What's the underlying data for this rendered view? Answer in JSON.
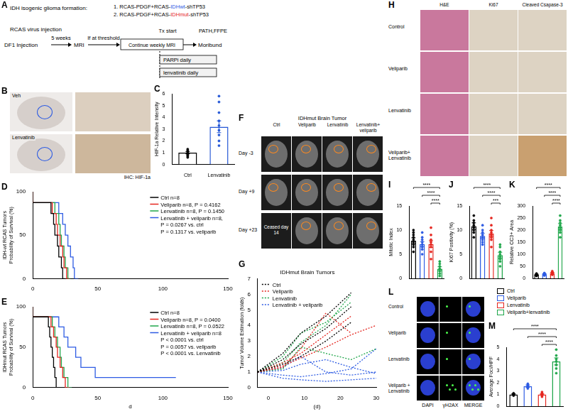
{
  "diagram": {
    "panel": "A",
    "heading": "IDH isogenic glioma formation:",
    "constructs": [
      {
        "number": "1.",
        "prefix": "RCAS-PDGF+RCAS-",
        "highlight": "IDHwt",
        "suffix": "-shTP53",
        "color": "#2d5be3"
      },
      {
        "number": "2.",
        "prefix": "RCAS-PDGF+RCAS-",
        "highlight": "IDHmut",
        "suffix": "-shTP53",
        "color": "#e5261f"
      }
    ],
    "steps": {
      "virus": "RCAS virus injection",
      "injection": "DF1 Injection",
      "interval": "5 weeks",
      "mri": "MRI",
      "threshold": "If at threshold",
      "weekly": "Continue weekly MRI",
      "tx": "Tx start",
      "parpi": "PARPi daily",
      "lenvatinib": "lenvatinib daily",
      "moribund": "Moribund",
      "path": "PATH,FFPE"
    }
  },
  "ihc_images": {
    "panel": "B",
    "rows": [
      "Veh",
      "Lenvatinib"
    ],
    "stain": "IHC: HIF-1a"
  },
  "mri_images": {
    "panel": "F",
    "title": "IDHmut Brain Tumor",
    "columns": [
      "Ctrl",
      "Veliparib",
      "Lenvatinib",
      "Lenvatinib+ veliparib"
    ],
    "rows": [
      "Day -3",
      "Day +9",
      "Day +23"
    ],
    "note": "Ceased day 14"
  },
  "histology_images": {
    "panel": "H",
    "columns": [
      "H&E",
      "Ki67",
      "Cleaved Csapase-3"
    ],
    "rows": [
      "Control",
      "Veliparib",
      "Lenvatinib",
      "Veliparib+ Lenvatinib"
    ]
  },
  "if_images": {
    "panel": "L",
    "columns": [
      "DAPI",
      "γH2AX",
      "MERGE"
    ],
    "rows": [
      "Control",
      "Veliparib",
      "Lenvatinib",
      "Veliparib + Lenvatinib"
    ]
  },
  "legend_key": {
    "items": [
      {
        "name": "Ctrl",
        "color": "#000000"
      },
      {
        "name": "Veliparib",
        "color": "#2d5be3"
      },
      {
        "name": "Lenvatinib",
        "color": "#e5261f"
      },
      {
        "name": "Veliparib+lenvatinib",
        "color": "#1fa64a"
      }
    ]
  },
  "chart_data": [
    {
      "panel": "C",
      "type": "bar",
      "categories": [
        "Ctrl",
        "Lenvatinib"
      ],
      "values": [
        1.0,
        3.2
      ],
      "errors": [
        0.1,
        0.5
      ],
      "points": [
        [
          0.6,
          0.7,
          0.8,
          0.9,
          1.0,
          1.1,
          1.2,
          1.3
        ],
        [
          1.6,
          2.0,
          2.5,
          2.9,
          3.3,
          3.7,
          4.4,
          5.3,
          5.8
        ]
      ],
      "colors": [
        "#000000",
        "#2356d6"
      ],
      "ylabel": "HIF-1a Relative Intensity",
      "ylim": [
        0,
        6
      ],
      "yticks": [
        0,
        1,
        2,
        3,
        4,
        5,
        6
      ],
      "grid": false
    },
    {
      "panel": "D",
      "type": "line",
      "line_style": "step",
      "ylabel": [
        "IDH-wt RCAS Tumors",
        "Probability of Survival (%)"
      ],
      "xlim": [
        0,
        150
      ],
      "xticks": [
        0,
        50,
        100,
        150
      ],
      "ylim": [
        0,
        100
      ],
      "yticks": [
        0,
        50,
        100
      ],
      "grid": false,
      "legend": "upper right",
      "series": [
        {
          "name": "Ctrl n=8",
          "color": "#000000",
          "x": [
            0,
            14,
            16,
            17,
            19,
            20,
            22,
            23,
            25
          ],
          "values": [
            100,
            87.5,
            75,
            62.5,
            50,
            37.5,
            25,
            12.5,
            0
          ]
        },
        {
          "name": "Veliparib n=8, P = 0.4162",
          "color": "#e5261f",
          "x": [
            0,
            15,
            18,
            19,
            21,
            23,
            24,
            26,
            28
          ],
          "values": [
            100,
            87.5,
            75,
            62.5,
            50,
            37.5,
            25,
            12.5,
            0
          ]
        },
        {
          "name": "Lenvatinib n=8, P = 0.1450",
          "color": "#1fa64a",
          "x": [
            0,
            17,
            20,
            21,
            22,
            24,
            25,
            27,
            29
          ],
          "values": [
            100,
            87.5,
            75,
            62.5,
            50,
            37.5,
            25,
            12.5,
            0
          ]
        },
        {
          "name": "Lenvatinib + veliparib n=8,",
          "color": "#2d5be3",
          "notes": [
            "P = 0.0267 vs. ctrl",
            "P = 0.1317 vs. veliparib"
          ],
          "x": [
            0,
            20,
            23,
            25,
            27,
            29,
            31,
            32,
            35
          ],
          "values": [
            100,
            87.5,
            75,
            62.5,
            50,
            37.5,
            25,
            12.5,
            0
          ]
        }
      ]
    },
    {
      "panel": "E",
      "type": "line",
      "line_style": "step",
      "xlabel": "d",
      "ylabel": [
        "IDHmut RCAS Tumors",
        "Probability of Survival (%)"
      ],
      "xlim": [
        0,
        150
      ],
      "xticks": [
        0,
        50,
        100,
        150
      ],
      "ylim": [
        0,
        100
      ],
      "yticks": [
        0,
        50,
        100
      ],
      "grid": false,
      "legend": "upper right",
      "series": [
        {
          "name": "Ctrl n=8",
          "color": "#000000",
          "x": [
            0,
            12,
            13,
            14,
            15,
            16,
            17,
            18,
            19
          ],
          "values": [
            100,
            87.5,
            75,
            62.5,
            50,
            37.5,
            25,
            12.5,
            0
          ]
        },
        {
          "name": "Veliparib n=8, P = 0.0400",
          "color": "#e5261f",
          "x": [
            0,
            14,
            16,
            18,
            19,
            21,
            23,
            25,
            28
          ],
          "values": [
            100,
            87.5,
            75,
            62.5,
            50,
            37.5,
            25,
            12.5,
            0
          ]
        },
        {
          "name": "Lenvatinib n=8, P = 0.0522",
          "color": "#1fa64a",
          "x": [
            0,
            15,
            17,
            19,
            21,
            22,
            24,
            27,
            30
          ],
          "values": [
            100,
            87.5,
            75,
            62.5,
            50,
            37.5,
            25,
            12.5,
            0
          ]
        },
        {
          "name": "Lenvatinib + veliparib n=8",
          "color": "#2d5be3",
          "notes": [
            "P < 0.0001 vs. ctrl",
            "P = 0.0057 vs. veliparib",
            "P < 0.0001 vs. Lenvatinib"
          ],
          "x": [
            0,
            20,
            24,
            27,
            33,
            37,
            48,
            105,
            110
          ],
          "values": [
            100,
            87.5,
            75,
            62.5,
            50,
            37.5,
            25,
            12.5,
            12.5
          ]
        }
      ]
    },
    {
      "panel": "G",
      "type": "line",
      "title": "IDHmut Brain Tumors",
      "xlabel": "(d)",
      "ylabel": "Tumor Volume Estimation (folds)",
      "x": [
        -3,
        4,
        9,
        16,
        23,
        30
      ],
      "xlim": [
        -3,
        30
      ],
      "xticks": [
        0,
        10,
        20,
        30
      ],
      "ylim": [
        0,
        7
      ],
      "yticks": [
        0,
        1,
        2,
        3,
        4,
        5,
        6,
        7
      ],
      "grid": false,
      "legend": "upper left",
      "series": [
        {
          "name": "Ctrl",
          "color": "#000000",
          "line_style": "dotted",
          "runs": [
            [
              1,
              1.8,
              2.8,
              3.8,
              5.2,
              null
            ],
            [
              1,
              2.2,
              3.5,
              4.6,
              6.1,
              null
            ],
            [
              1,
              1.5,
              2.0,
              3.0,
              4.2,
              null
            ]
          ]
        },
        {
          "name": "Veliparib",
          "color": "#e5261f",
          "line_style": "dotted",
          "runs": [
            [
              1,
              1.6,
              2.2,
              3.4,
              4.6,
              null
            ],
            [
              1,
              1.3,
              2.5,
              4.8,
              3.5,
              null
            ],
            [
              1,
              1.4,
              1.9,
              2.6,
              3.4,
              4.0
            ]
          ]
        },
        {
          "name": "Lenvatinib",
          "color": "#1fa64a",
          "line_style": "dotted",
          "runs": [
            [
              1,
              2.0,
              3.5,
              4.2,
              5.5,
              null
            ],
            [
              1,
              1.6,
              2.9,
              4.0,
              6.0,
              null
            ],
            [
              1,
              1.2,
              2.6,
              2.2,
              1.8,
              2.5
            ]
          ]
        },
        {
          "name": "Lenvatinib + veliparib",
          "color": "#2d5be3",
          "line_style": "dotted",
          "runs": [
            [
              1,
              0.8,
              0.7,
              0.9,
              1.2,
              2.5
            ],
            [
              1,
              1.1,
              1.5,
              1.8,
              1.3,
              0.9
            ],
            [
              1,
              0.6,
              0.5,
              0.4,
              0.5,
              0.6
            ],
            [
              1,
              1.3,
              2.0,
              1.0,
              0.8,
              1.0
            ]
          ]
        }
      ]
    },
    {
      "panel": "I",
      "type": "bar",
      "tick_labels": "y",
      "categories": [
        "Ctrl",
        "Veliparib",
        "Lenvatinib",
        "Veliparib+lenvatinib"
      ],
      "values": [
        7.8,
        7.1,
        7.1,
        2.0
      ],
      "errors": [
        0.6,
        0.5,
        0.7,
        0.4
      ],
      "points": [
        [
          5.5,
          6.5,
          7.0,
          7.5,
          8.0,
          8.5,
          9.0,
          9.5,
          10.0
        ],
        [
          5.0,
          6.0,
          6.5,
          7.0,
          7.5,
          8.0,
          8.5,
          9.5
        ],
        [
          4.0,
          5.5,
          6.5,
          7.0,
          7.5,
          8.0,
          9.0,
          10.5
        ],
        [
          0.5,
          1.0,
          1.5,
          2.0,
          2.5,
          3.0,
          3.5
        ]
      ],
      "colors": [
        "#000000",
        "#2d5be3",
        "#e5261f",
        "#1fa64a"
      ],
      "ylabel": "Mitotic Index",
      "ylim": [
        0,
        15
      ],
      "yticks": [
        0,
        5,
        10,
        15
      ],
      "grid": false,
      "brackets": [
        {
          "between": [
            "Ctrl",
            "Veliparib+lenvatinib"
          ],
          "label": "****"
        },
        {
          "between": [
            "Veliparib",
            "Veliparib+lenvatinib"
          ],
          "label": "****"
        },
        {
          "between": [
            "Lenvatinib",
            "Veliparib+lenvatinib"
          ],
          "label": "****"
        }
      ]
    },
    {
      "panel": "J",
      "type": "bar",
      "tick_labels": "y",
      "categories": [
        "Ctrl",
        "Veliparib",
        "Lenvatinib",
        "Veliparib+lenvatinib"
      ],
      "values": [
        10.8,
        8.8,
        9.3,
        4.8
      ],
      "errors": [
        0.7,
        0.5,
        0.6,
        0.6
      ],
      "points": [
        [
          8.5,
          9.5,
          10.0,
          10.5,
          11.0,
          11.5,
          12.0,
          13.0
        ],
        [
          7.0,
          7.5,
          8.0,
          8.5,
          9.0,
          9.5,
          10.0,
          11.0
        ],
        [
          6.5,
          8.0,
          8.5,
          9.0,
          9.5,
          10.0,
          11.0,
          12.5
        ],
        [
          2.5,
          3.5,
          4.0,
          4.5,
          5.0,
          5.5,
          6.5,
          7.0
        ]
      ],
      "colors": [
        "#000000",
        "#2d5be3",
        "#e5261f",
        "#1fa64a"
      ],
      "ylabel": "Ki67 Positivity (%)",
      "ylim": [
        0,
        15
      ],
      "yticks": [
        0,
        5,
        10,
        15
      ],
      "grid": false,
      "brackets": [
        {
          "between": [
            "Ctrl",
            "Veliparib+lenvatinib"
          ],
          "label": "****"
        },
        {
          "between": [
            "Veliparib",
            "Veliparib+lenvatinib"
          ],
          "label": "****"
        },
        {
          "between": [
            "Lenvatinib",
            "Veliparib+lenvatinib"
          ],
          "label": "***"
        }
      ]
    },
    {
      "panel": "K",
      "type": "bar",
      "tick_labels": "y",
      "categories": [
        "Ctrl",
        "Veliparib",
        "Lenvatinib",
        "Veliparib+lenvatinib"
      ],
      "values": [
        15,
        17,
        22,
        215
      ],
      "errors": [
        2,
        2,
        3,
        12
      ],
      "points": [
        [
          10,
          12,
          14,
          15,
          16,
          18,
          20
        ],
        [
          12,
          14,
          16,
          17,
          19,
          21,
          22
        ],
        [
          15,
          18,
          20,
          22,
          24,
          26,
          30
        ],
        [
          170,
          190,
          200,
          210,
          220,
          230,
          240,
          260
        ]
      ],
      "colors": [
        "#000000",
        "#2d5be3",
        "#e5261f",
        "#1fa64a"
      ],
      "ylabel": "Relative CC3+ Area",
      "ylim": [
        0,
        300
      ],
      "yticks": [
        0,
        50,
        100,
        150,
        200,
        250,
        300
      ],
      "grid": false,
      "brackets": [
        {
          "between": [
            "Ctrl",
            "Veliparib+lenvatinib"
          ],
          "label": "****"
        },
        {
          "between": [
            "Veliparib",
            "Veliparib+lenvatinib"
          ],
          "label": "****"
        },
        {
          "between": [
            "Lenvatinib",
            "Veliparib+lenvatinib"
          ],
          "label": "****"
        }
      ]
    },
    {
      "panel": "M",
      "type": "bar",
      "tick_labels": "y",
      "categories": [
        "Ctrl",
        "Veliparib",
        "Lenvatinib",
        "Veliparib+lenvatinib"
      ],
      "values": [
        1.0,
        1.7,
        1.0,
        3.8
      ],
      "errors": [
        0.05,
        0.1,
        0.05,
        0.3
      ],
      "points": [
        [
          0.9,
          0.95,
          1.0,
          1.0,
          1.05,
          1.1
        ],
        [
          1.5,
          1.6,
          1.7,
          1.7,
          1.8,
          1.9
        ],
        [
          0.8,
          0.9,
          1.0,
          1.0,
          1.1,
          1.2
        ],
        [
          2.8,
          3.2,
          3.5,
          3.8,
          4.0,
          4.3,
          4.8
        ]
      ],
      "colors": [
        "#000000",
        "#2d5be3",
        "#e5261f",
        "#1fa64a"
      ],
      "ylabel": "Average Foci/HPF",
      "ylim": [
        0,
        5
      ],
      "yticks": [
        0,
        1,
        2,
        3,
        4,
        5
      ],
      "grid": false,
      "brackets": [
        {
          "between": [
            "Ctrl",
            "Veliparib+lenvatinib"
          ],
          "label": "****"
        },
        {
          "between": [
            "Veliparib",
            "Veliparib+lenvatinib"
          ],
          "label": "****"
        },
        {
          "between": [
            "Lenvatinib",
            "Veliparib+lenvatinib"
          ],
          "label": "****"
        }
      ]
    }
  ]
}
